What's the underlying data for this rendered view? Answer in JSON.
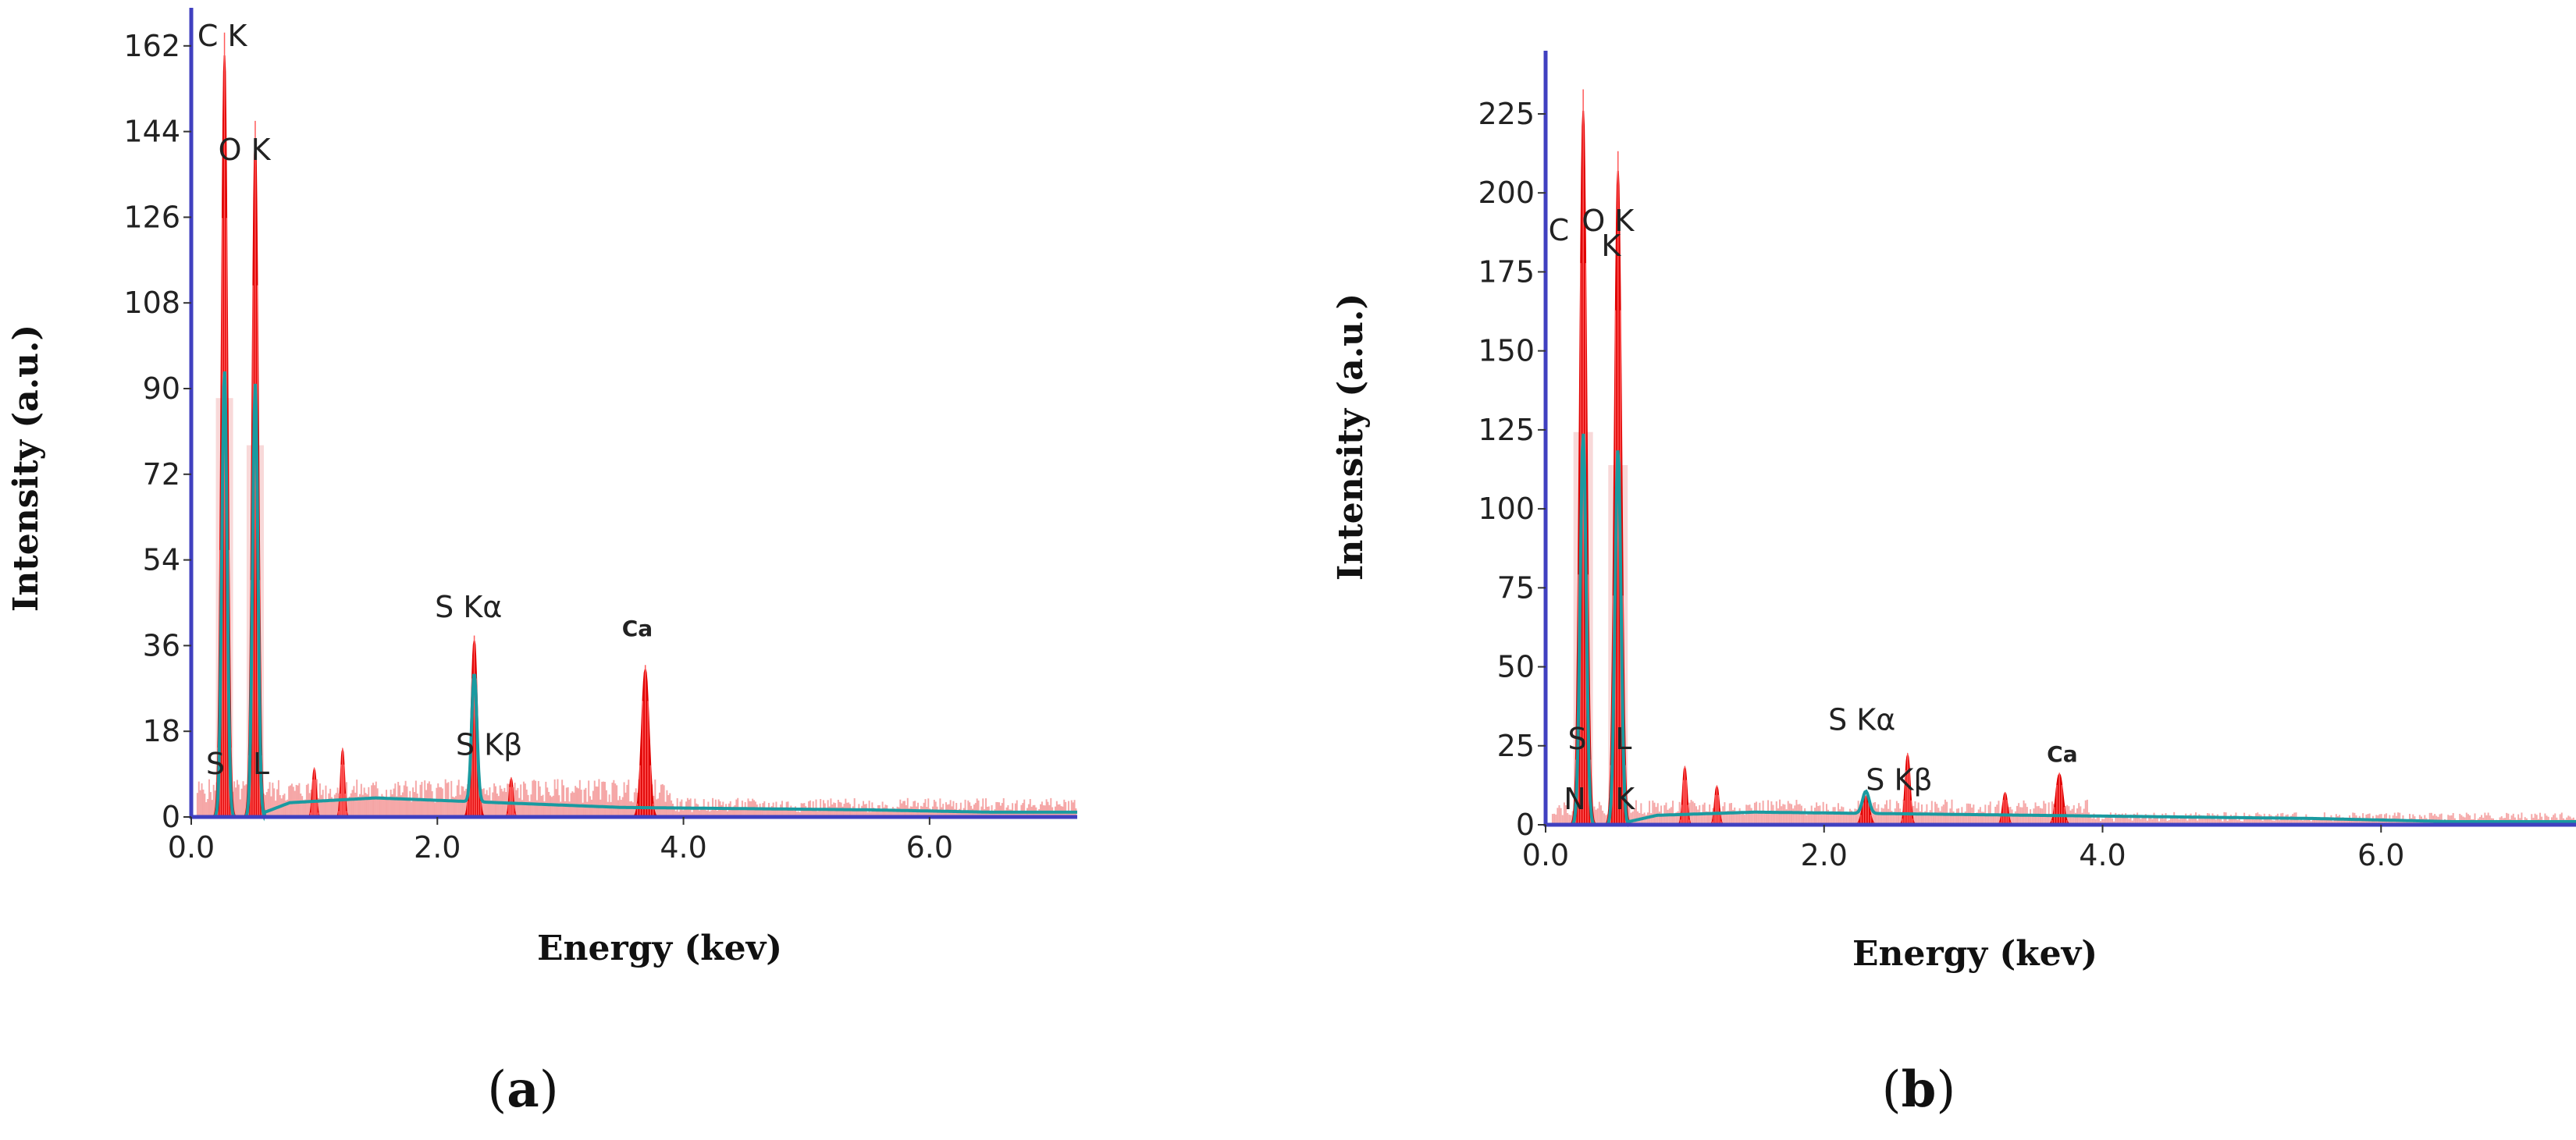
{
  "chart_data": [
    {
      "type": "area",
      "panel": "(a)",
      "caption_open": "(",
      "caption_letter": "a",
      "caption_close": ")",
      "xlabel": "Energy (kev)",
      "ylabel": "Intensity (a.u.)",
      "xlim": [
        0,
        7.2
      ],
      "ylim": [
        0,
        170
      ],
      "xticks": [
        "0.0",
        "2.0",
        "4.0",
        "6.0"
      ],
      "xtick_values": [
        0,
        2,
        4,
        6
      ],
      "yticks": [
        "0",
        "18",
        "36",
        "54",
        "72",
        "90",
        "108",
        "126",
        "144",
        "162"
      ],
      "ytick_values": [
        0,
        18,
        36,
        54,
        72,
        90,
        108,
        126,
        144,
        162
      ],
      "colors": {
        "spectrum": "#e00000",
        "fit": "#1a9aa0",
        "axis": "#4040c0",
        "band": "#f2b9b9"
      },
      "peaks": [
        {
          "x": 0.27,
          "y": 160,
          "w": 0.05
        },
        {
          "x": 0.52,
          "y": 142,
          "w": 0.05
        },
        {
          "x": 1.0,
          "y": 10,
          "w": 0.03
        },
        {
          "x": 1.23,
          "y": 14,
          "w": 0.03
        },
        {
          "x": 2.3,
          "y": 37,
          "w": 0.05
        },
        {
          "x": 2.6,
          "y": 8,
          "w": 0.03
        },
        {
          "x": 3.69,
          "y": 31,
          "w": 0.06
        }
      ],
      "fit_peaks": [
        {
          "x": 0.27,
          "y": 94,
          "w": 0.045
        },
        {
          "x": 0.52,
          "y": 91,
          "w": 0.045
        },
        {
          "x": 2.3,
          "y": 27,
          "w": 0.045
        }
      ],
      "background": [
        [
          0.6,
          1
        ],
        [
          0.8,
          3
        ],
        [
          1.5,
          4
        ],
        [
          2.5,
          3
        ],
        [
          3.5,
          2
        ],
        [
          5.5,
          1.5
        ],
        [
          6.5,
          1
        ],
        [
          7.2,
          1
        ]
      ],
      "bands": [
        [
          0.2,
          0.34
        ],
        [
          0.45,
          0.59
        ]
      ],
      "labels": [
        {
          "text": "C  K",
          "x": 0.05,
          "y": 162,
          "cls": "peak"
        },
        {
          "text": "O  K",
          "x": 0.22,
          "y": 138,
          "cls": "peak"
        },
        {
          "text": "S  Kα",
          "x": 1.98,
          "y": 42,
          "cls": "peak"
        },
        {
          "text": "S  Kβ",
          "x": 2.15,
          "y": 13,
          "cls": "peak"
        },
        {
          "text": "Ca",
          "x": 3.5,
          "y": 38,
          "cls": "peak-small"
        },
        {
          "text": "S",
          "x": 0.12,
          "y": 9,
          "cls": "peak"
        },
        {
          "text": "L",
          "x": 0.5,
          "y": 9,
          "cls": "peak"
        }
      ]
    },
    {
      "type": "area",
      "panel": "(b)",
      "caption_open": "(",
      "caption_letter": "b",
      "caption_close": ")",
      "xlabel": "Energy (kev)",
      "ylabel": "Intensity (a.u.)",
      "xlim": [
        0,
        7.4
      ],
      "ylim": [
        0,
        245
      ],
      "xticks": [
        "0.0",
        "2.0",
        "4.0",
        "6.0"
      ],
      "xtick_values": [
        0,
        2,
        4,
        6
      ],
      "yticks": [
        "0",
        "25",
        "50",
        "75",
        "100",
        "125",
        "150",
        "175",
        "200",
        "225"
      ],
      "ytick_values": [
        0,
        25,
        50,
        75,
        100,
        125,
        150,
        175,
        200,
        225
      ],
      "colors": {
        "spectrum": "#e00000",
        "fit": "#1a9aa0",
        "axis": "#4040c0",
        "band": "#f2b9b9"
      },
      "peaks": [
        {
          "x": 0.27,
          "y": 226,
          "w": 0.05
        },
        {
          "x": 0.52,
          "y": 207,
          "w": 0.05
        },
        {
          "x": 1.0,
          "y": 18,
          "w": 0.03
        },
        {
          "x": 1.23,
          "y": 12,
          "w": 0.03
        },
        {
          "x": 2.3,
          "y": 9,
          "w": 0.05
        },
        {
          "x": 2.6,
          "y": 22,
          "w": 0.035
        },
        {
          "x": 3.3,
          "y": 10,
          "w": 0.035
        },
        {
          "x": 3.69,
          "y": 16,
          "w": 0.05
        }
      ],
      "fit_peaks": [
        {
          "x": 0.27,
          "y": 124,
          "w": 0.045
        },
        {
          "x": 0.52,
          "y": 119,
          "w": 0.045
        },
        {
          "x": 2.3,
          "y": 7,
          "w": 0.05
        }
      ],
      "background": [
        [
          0.6,
          1
        ],
        [
          0.8,
          3
        ],
        [
          1.5,
          4
        ],
        [
          2.5,
          3.5
        ],
        [
          3.5,
          3
        ],
        [
          5.5,
          2
        ],
        [
          6.5,
          1
        ],
        [
          7.4,
          1
        ]
      ],
      "bands": [
        [
          0.2,
          0.34
        ],
        [
          0.45,
          0.59
        ]
      ],
      "labels": [
        {
          "text": "C",
          "x": 0.02,
          "y": 185,
          "cls": "peak"
        },
        {
          "text": "O  K",
          "x": 0.26,
          "y": 188,
          "cls": "peak"
        },
        {
          "text": "K",
          "x": 0.4,
          "y": 180,
          "cls": "peak"
        },
        {
          "text": "S  Kα",
          "x": 2.03,
          "y": 30,
          "cls": "peak"
        },
        {
          "text": "S  Kβ",
          "x": 2.3,
          "y": 11,
          "cls": "peak"
        },
        {
          "text": "Ca",
          "x": 3.6,
          "y": 20,
          "cls": "peak-small"
        },
        {
          "text": "S",
          "x": 0.16,
          "y": 24,
          "cls": "peak"
        },
        {
          "text": "L",
          "x": 0.5,
          "y": 24,
          "cls": "peak"
        },
        {
          "text": "N",
          "x": 0.13,
          "y": 5,
          "cls": "peak"
        },
        {
          "text": "K",
          "x": 0.5,
          "y": 5,
          "cls": "peak"
        }
      ]
    }
  ]
}
